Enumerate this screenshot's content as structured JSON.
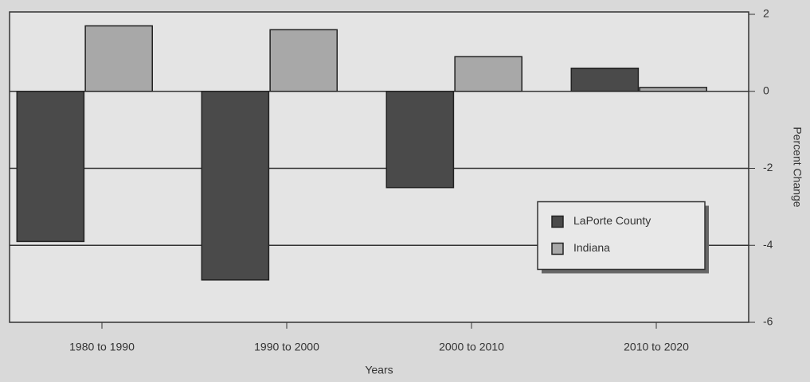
{
  "chart_data": {
    "type": "bar",
    "categories": [
      "1980 to 1990",
      "1990 to 2000",
      "2000 to 2010",
      "2010 to 2020"
    ],
    "series": [
      {
        "name": "LaPorte County",
        "color": "#4a4a4a",
        "values": [
          -3.9,
          -4.9,
          -2.5,
          0.6
        ]
      },
      {
        "name": "Indiana",
        "color": "#a8a8a8",
        "values": [
          1.7,
          1.6,
          0.9,
          0.1
        ]
      }
    ],
    "ylim": [
      -6,
      2
    ],
    "yticks": [
      -6,
      -4,
      -2,
      0,
      2
    ],
    "y_axis_side": "right",
    "grid": true,
    "legend": "lower right",
    "xlabel": "Years",
    "ylabel": "Percent Change"
  }
}
